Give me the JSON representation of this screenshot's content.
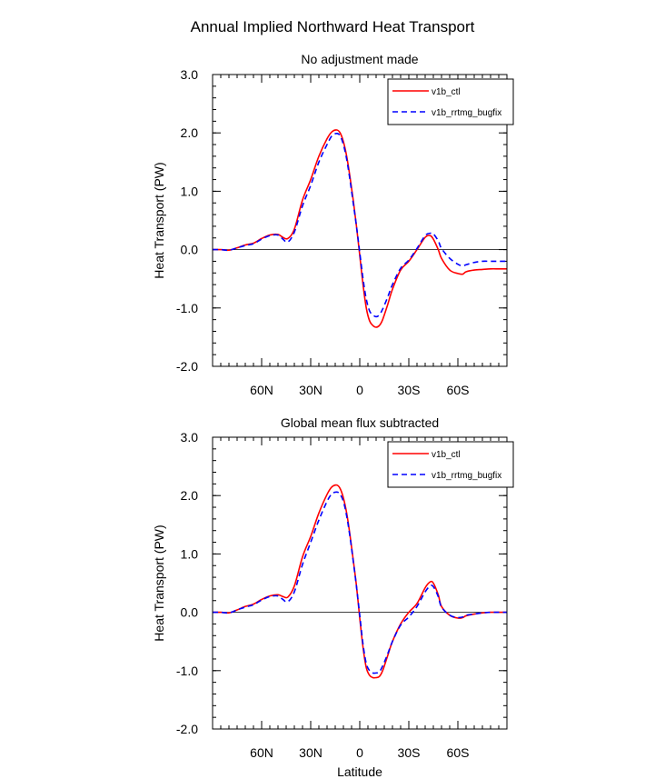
{
  "figure": {
    "title": "Annual Implied Northward Heat Transport"
  },
  "chart_data": [
    {
      "type": "line",
      "title": "No adjustment made",
      "xlabel": "",
      "ylabel": "Heat Transport (PW)",
      "xlim": [
        -90,
        90
      ],
      "ylim": [
        -2.0,
        3.0
      ],
      "x_ticks": [
        {
          "value": -60,
          "label": "60N"
        },
        {
          "value": -30,
          "label": "30N"
        },
        {
          "value": 0,
          "label": "0"
        },
        {
          "value": 30,
          "label": "30S"
        },
        {
          "value": 60,
          "label": "60S"
        }
      ],
      "y_ticks": [
        {
          "value": 3.0,
          "label": "3.0"
        },
        {
          "value": 2.0,
          "label": "2.0"
        },
        {
          "value": 1.0,
          "label": "1.0"
        },
        {
          "value": 0.0,
          "label": "0.0"
        },
        {
          "value": -1.0,
          "label": "-1.0"
        },
        {
          "value": -2.0,
          "label": "-2.0"
        }
      ],
      "legend_position": "top-right",
      "series": [
        {
          "name": "v1b_ctl",
          "color": "#ff0000",
          "dash": "solid",
          "x": [
            -90,
            -85,
            -80,
            -75,
            -70,
            -65,
            -60,
            -55,
            -50,
            -47,
            -44,
            -40,
            -35,
            -30,
            -25,
            -20,
            -17,
            -14,
            -12,
            -10,
            -8,
            -6,
            -4,
            -2,
            0,
            2,
            4,
            6,
            8,
            10,
            12,
            14,
            17,
            20,
            25,
            30,
            35,
            40,
            43,
            45,
            48,
            50,
            55,
            60,
            63,
            65,
            70,
            75,
            80,
            85,
            90
          ],
          "y": [
            0.0,
            0.0,
            -0.01,
            0.03,
            0.08,
            0.11,
            0.19,
            0.25,
            0.26,
            0.21,
            0.19,
            0.35,
            0.85,
            1.2,
            1.6,
            1.9,
            2.02,
            2.05,
            2.0,
            1.85,
            1.6,
            1.25,
            0.85,
            0.4,
            -0.1,
            -0.6,
            -1.0,
            -1.22,
            -1.3,
            -1.33,
            -1.3,
            -1.2,
            -0.95,
            -0.68,
            -0.35,
            -0.2,
            0.0,
            0.21,
            0.24,
            0.18,
            0.0,
            -0.15,
            -0.35,
            -0.41,
            -0.42,
            -0.38,
            -0.35,
            -0.34,
            -0.33,
            -0.33,
            -0.33
          ]
        },
        {
          "name": "v1b_rrtmg_bugfix",
          "color": "#0000ff",
          "dash": "dashed",
          "x": [
            -90,
            -85,
            -80,
            -75,
            -70,
            -65,
            -60,
            -55,
            -50,
            -47,
            -44,
            -40,
            -35,
            -30,
            -25,
            -20,
            -17,
            -14,
            -12,
            -10,
            -8,
            -6,
            -4,
            -2,
            0,
            2,
            4,
            6,
            8,
            10,
            12,
            14,
            17,
            20,
            25,
            30,
            35,
            40,
            43,
            45,
            48,
            50,
            55,
            60,
            63,
            65,
            70,
            75,
            80,
            85,
            90
          ],
          "y": [
            0.0,
            0.0,
            -0.01,
            0.03,
            0.07,
            0.1,
            0.18,
            0.24,
            0.25,
            0.18,
            0.13,
            0.3,
            0.75,
            1.1,
            1.5,
            1.8,
            1.95,
            1.99,
            1.95,
            1.8,
            1.55,
            1.2,
            0.8,
            0.4,
            -0.05,
            -0.5,
            -0.85,
            -1.05,
            -1.12,
            -1.15,
            -1.12,
            -1.02,
            -0.82,
            -0.6,
            -0.32,
            -0.18,
            0.02,
            0.24,
            0.28,
            0.27,
            0.15,
            0.02,
            -0.15,
            -0.25,
            -0.28,
            -0.26,
            -0.22,
            -0.2,
            -0.2,
            -0.2,
            -0.2
          ]
        }
      ]
    },
    {
      "type": "line",
      "title": "Global mean flux subtracted",
      "xlabel": "Latitude",
      "ylabel": "Heat Transport (PW)",
      "xlim": [
        -90,
        90
      ],
      "ylim": [
        -2.0,
        3.0
      ],
      "x_ticks": [
        {
          "value": -60,
          "label": "60N"
        },
        {
          "value": -30,
          "label": "30N"
        },
        {
          "value": 0,
          "label": "0"
        },
        {
          "value": 30,
          "label": "30S"
        },
        {
          "value": 60,
          "label": "60S"
        }
      ],
      "y_ticks": [
        {
          "value": 3.0,
          "label": "3.0"
        },
        {
          "value": 2.0,
          "label": "2.0"
        },
        {
          "value": 1.0,
          "label": "1.0"
        },
        {
          "value": 0.0,
          "label": "0.0"
        },
        {
          "value": -1.0,
          "label": "-1.0"
        },
        {
          "value": -2.0,
          "label": "-2.0"
        }
      ],
      "legend_position": "top-right",
      "series": [
        {
          "name": "v1b_ctl",
          "color": "#ff0000",
          "dash": "solid",
          "x": [
            -90,
            -85,
            -80,
            -75,
            -70,
            -65,
            -60,
            -55,
            -50,
            -47,
            -44,
            -40,
            -35,
            -30,
            -25,
            -20,
            -17,
            -14,
            -12,
            -10,
            -8,
            -6,
            -4,
            -2,
            0,
            2,
            4,
            6,
            8,
            10,
            12,
            14,
            17,
            20,
            25,
            30,
            35,
            40,
            43,
            45,
            48,
            50,
            55,
            60,
            63,
            65,
            70,
            75,
            80,
            85,
            90
          ],
          "y": [
            0.0,
            0.0,
            -0.01,
            0.04,
            0.1,
            0.14,
            0.22,
            0.28,
            0.3,
            0.27,
            0.26,
            0.45,
            0.95,
            1.3,
            1.7,
            2.02,
            2.15,
            2.18,
            2.12,
            1.96,
            1.7,
            1.33,
            0.9,
            0.45,
            -0.1,
            -0.6,
            -0.95,
            -1.08,
            -1.12,
            -1.12,
            -1.1,
            -1.0,
            -0.75,
            -0.5,
            -0.2,
            0.0,
            0.15,
            0.42,
            0.52,
            0.5,
            0.3,
            0.1,
            -0.05,
            -0.1,
            -0.09,
            -0.06,
            -0.03,
            -0.01,
            0.0,
            0.0,
            0.0
          ]
        },
        {
          "name": "v1b_rrtmg_bugfix",
          "color": "#0000ff",
          "dash": "dashed",
          "x": [
            -90,
            -85,
            -80,
            -75,
            -70,
            -65,
            -60,
            -55,
            -50,
            -47,
            -44,
            -40,
            -35,
            -30,
            -25,
            -20,
            -17,
            -14,
            -12,
            -10,
            -8,
            -6,
            -4,
            -2,
            0,
            2,
            4,
            6,
            8,
            10,
            12,
            14,
            17,
            20,
            25,
            30,
            35,
            40,
            43,
            45,
            48,
            50,
            55,
            60,
            63,
            65,
            70,
            75,
            80,
            85,
            90
          ],
          "y": [
            0.0,
            0.0,
            -0.01,
            0.04,
            0.09,
            0.13,
            0.21,
            0.27,
            0.28,
            0.22,
            0.18,
            0.35,
            0.82,
            1.2,
            1.58,
            1.9,
            2.03,
            2.06,
            2.02,
            1.9,
            1.65,
            1.3,
            0.88,
            0.44,
            -0.05,
            -0.55,
            -0.88,
            -1.0,
            -1.04,
            -1.04,
            -1.02,
            -0.92,
            -0.72,
            -0.5,
            -0.22,
            -0.08,
            0.1,
            0.35,
            0.45,
            0.44,
            0.27,
            0.09,
            -0.05,
            -0.09,
            -0.08,
            -0.05,
            -0.03,
            -0.01,
            0.0,
            0.0,
            0.0
          ]
        }
      ]
    }
  ]
}
